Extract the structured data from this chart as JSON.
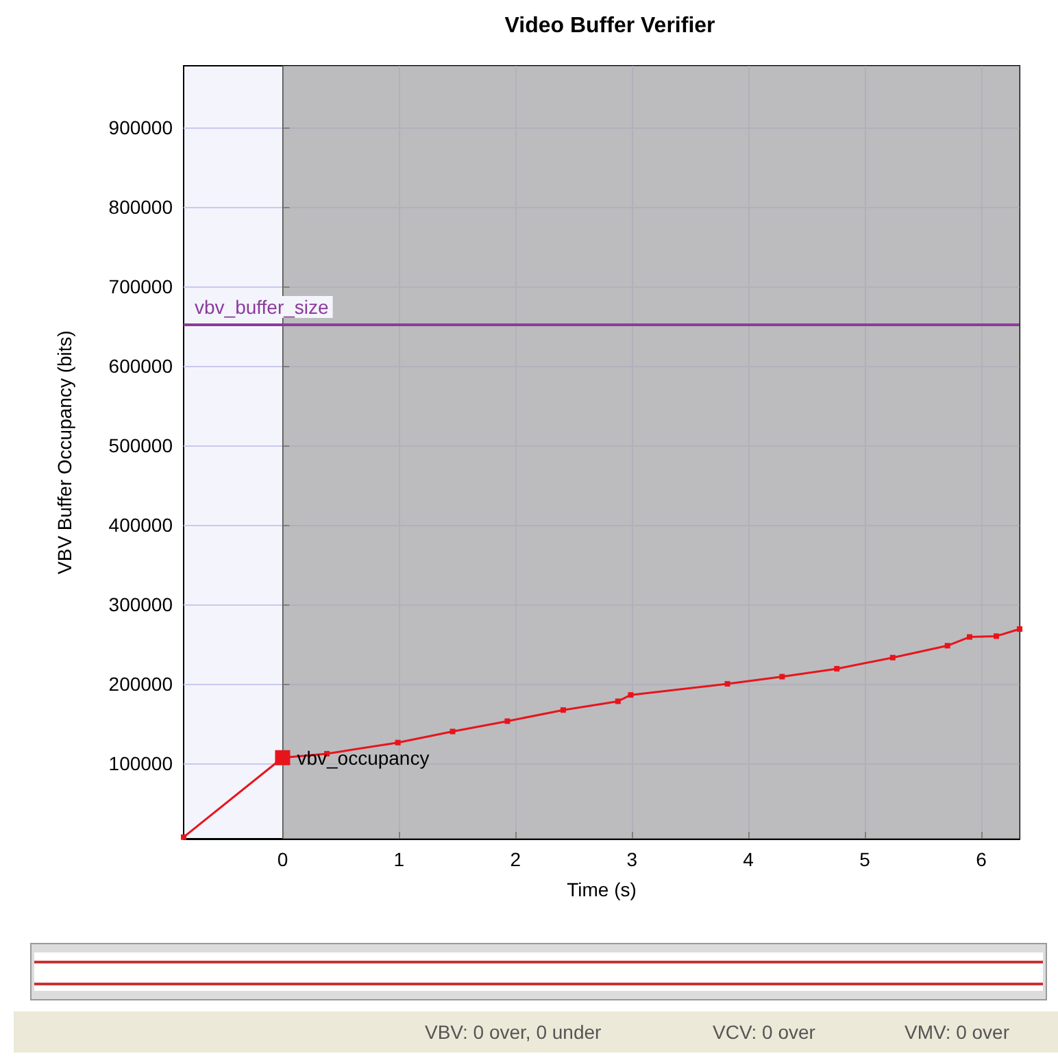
{
  "chart_data": {
    "type": "line",
    "title": "Video Buffer Verifier",
    "xlabel": "Time (s)",
    "ylabel": "VBV Buffer Occupancy (bits)",
    "x": [
      -0.85,
      0,
      0.38,
      0.99,
      1.46,
      1.93,
      2.41,
      2.88,
      2.99,
      3.82,
      4.29,
      4.76,
      5.24,
      5.71,
      5.9,
      6.13,
      6.33
    ],
    "series": [
      {
        "name": "vbv_occupancy",
        "color": "#e8141c",
        "values": [
          7000,
          107000,
          112000,
          126000,
          140000,
          153000,
          167000,
          178000,
          186000,
          200000,
          209000,
          219000,
          233000,
          248000,
          259000,
          260000,
          269000
        ]
      }
    ],
    "xlim": [
      -0.85,
      6.33
    ],
    "xticks": [
      0,
      1,
      2,
      3,
      4,
      5,
      6
    ],
    "ylim": [
      5000,
      978000
    ],
    "yticks": [
      100000,
      200000,
      300000,
      400000,
      500000,
      600000,
      700000,
      800000,
      900000
    ],
    "ref_lines": [
      {
        "axis": "y",
        "value": 652000,
        "label": "vbv_buffer_size",
        "color": "#8a3c9a"
      }
    ],
    "bands": [
      {
        "axis": "x",
        "from": 0,
        "to": 6.33,
        "color": "#a9a9a9"
      }
    ],
    "grid": true,
    "marker": "square",
    "legend": false,
    "annotations": [
      "VBV: 0 over, 0 under",
      "VCV: 0 over",
      "VMV: 0 over"
    ]
  }
}
